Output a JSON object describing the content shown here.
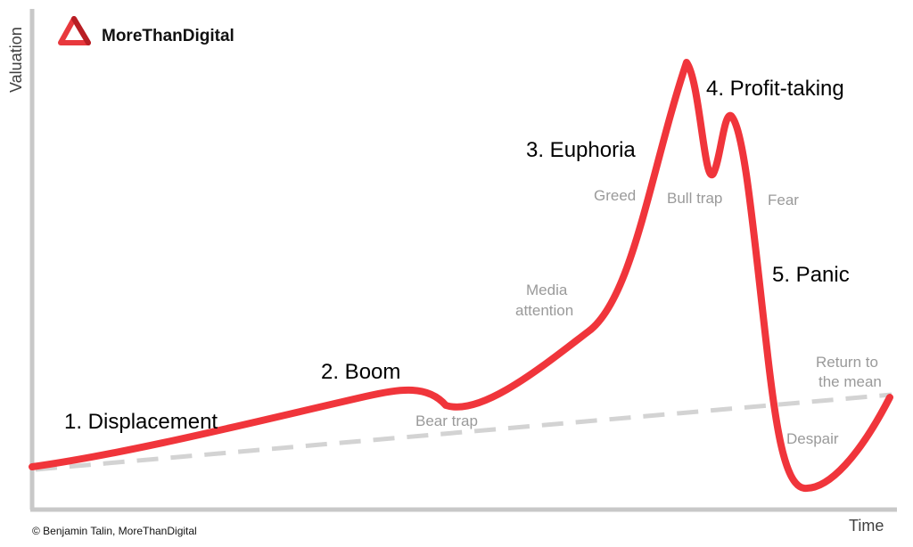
{
  "brand": {
    "name": "MoreThanDigital",
    "color": "#e8383d",
    "icon": "triangle-logo-icon"
  },
  "axes": {
    "y_label": "Valuation",
    "x_label": "Time",
    "color": "#c8c8c8"
  },
  "curve": {
    "color": "#f0353b",
    "trend_color": "#d3d3d3",
    "trend_style": "dashed"
  },
  "stages": {
    "displacement": "1. Displacement",
    "boom": "2. Boom",
    "euphoria": "3. Euphoria",
    "profit_taking": "4. Profit-taking",
    "panic": "5. Panic"
  },
  "notes": {
    "bear_trap": "Bear trap",
    "media_line1": "Media",
    "media_line2": "attention",
    "greed": "Greed",
    "bull_trap": "Bull trap",
    "fear": "Fear",
    "return_line1": "Return to",
    "return_line2": "the mean",
    "despair": "Despair"
  },
  "copyright": "© Benjamin Talin, MoreThanDigital"
}
